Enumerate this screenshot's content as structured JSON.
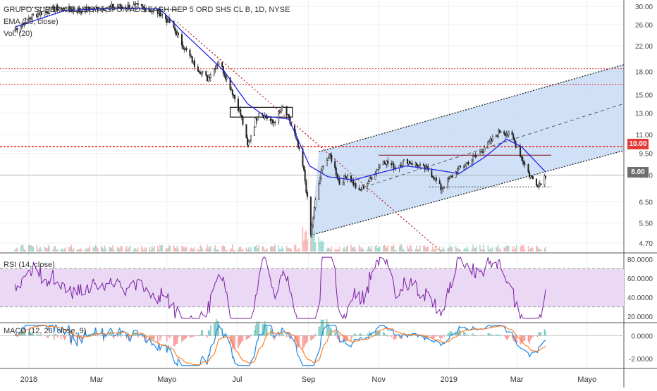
{
  "header": {
    "instrument": "GRUPO SUPERVIELLE S.A. SPON ADS EACH REP 5 ORD SHS CL B, 1D, NYSE",
    "ema_label": "EMA (20, close)",
    "vol_label": "Vol. (20)"
  },
  "rsi_panel": {
    "label": "RSI (14, close)"
  },
  "macd_panel": {
    "label": "MACD (12, 26, close, 9)"
  },
  "price_badges": {
    "resistance": "10.00",
    "last": "8.00"
  },
  "colors": {
    "up": "#26a69a",
    "down": "#ef5350",
    "ema": "#2424e6",
    "rsi": "#7b1fa2",
    "rsi_band": "#ead8f5",
    "channel": "#bcd4f4",
    "resistance": "#e53935",
    "macd": "#1e88e5",
    "signal": "#ff7f27",
    "grid": "#eceff3"
  },
  "chart_data": {
    "type": "candlestick",
    "price_axis": {
      "scale": "log",
      "ylim": [
        4.4,
        31.0
      ],
      "ticks": [
        "30.00",
        "26.00",
        "22.00",
        "18.00",
        "15.00",
        "13.00",
        "11.00",
        "9.50",
        "8.00",
        "6.50",
        "5.50",
        "4.70"
      ]
    },
    "x_axis_labels": [
      "2018",
      "Mar",
      "Mayo",
      "Jul",
      "Sep",
      "Nov",
      "2019",
      "Mar",
      "Mayo"
    ],
    "price_path_points": [
      [
        "2017-12-20",
        25.0
      ],
      [
        "2018-01-05",
        28.0
      ],
      [
        "2018-01-25",
        29.5
      ],
      [
        "2018-02-15",
        29.0
      ],
      [
        "2018-03-10",
        29.8
      ],
      [
        "2018-04-05",
        30.0
      ],
      [
        "2018-04-25",
        28.5
      ],
      [
        "2018-05-05",
        26.0
      ],
      [
        "2018-05-15",
        22.0
      ],
      [
        "2018-05-25",
        19.0
      ],
      [
        "2018-06-05",
        17.0
      ],
      [
        "2018-06-15",
        19.5
      ],
      [
        "2018-06-25",
        16.0
      ],
      [
        "2018-07-05",
        12.5
      ],
      [
        "2018-07-10",
        10.0
      ],
      [
        "2018-07-20",
        13.2
      ],
      [
        "2018-08-01",
        12.0
      ],
      [
        "2018-08-10",
        13.6
      ],
      [
        "2018-08-20",
        11.0
      ],
      [
        "2018-08-28",
        8.2
      ],
      [
        "2018-09-03",
        5.0
      ],
      [
        "2018-09-07",
        6.5
      ],
      [
        "2018-09-14",
        8.8
      ],
      [
        "2018-09-20",
        9.3
      ],
      [
        "2018-09-28",
        7.5
      ],
      [
        "2018-10-05",
        8.0
      ],
      [
        "2018-10-15",
        7.0
      ],
      [
        "2018-10-25",
        7.8
      ],
      [
        "2018-11-05",
        9.0
      ],
      [
        "2018-11-15",
        8.5
      ],
      [
        "2018-11-25",
        9.0
      ],
      [
        "2018-12-05",
        8.6
      ],
      [
        "2018-12-15",
        8.3
      ],
      [
        "2018-12-25",
        7.2
      ],
      [
        "2019-01-10",
        8.4
      ],
      [
        "2019-01-25",
        9.3
      ],
      [
        "2019-02-05",
        10.3
      ],
      [
        "2019-02-15",
        11.4
      ],
      [
        "2019-02-25",
        10.8
      ],
      [
        "2019-03-05",
        9.2
      ],
      [
        "2019-03-12",
        8.0
      ],
      [
        "2019-03-20",
        7.4
      ],
      [
        "2019-03-26",
        8.0
      ]
    ],
    "ema_path_points": [
      [
        "2017-12-20",
        25.5
      ],
      [
        "2018-02-01",
        29.0
      ],
      [
        "2018-03-20",
        29.6
      ],
      [
        "2018-04-25",
        29.4
      ],
      [
        "2018-05-15",
        24.5
      ],
      [
        "2018-06-05",
        20.5
      ],
      [
        "2018-06-20",
        18.0
      ],
      [
        "2018-07-10",
        14.0
      ],
      [
        "2018-07-25",
        12.7
      ],
      [
        "2018-08-15",
        12.4
      ],
      [
        "2018-09-02",
        8.6
      ],
      [
        "2018-09-18",
        7.9
      ],
      [
        "2018-10-10",
        7.7
      ],
      [
        "2018-11-05",
        8.2
      ],
      [
        "2018-11-25",
        8.6
      ],
      [
        "2018-12-15",
        8.4
      ],
      [
        "2019-01-10",
        8.1
      ],
      [
        "2019-02-01",
        9.2
      ],
      [
        "2019-02-20",
        10.6
      ],
      [
        "2019-03-05",
        10.0
      ],
      [
        "2019-03-26",
        8.2
      ]
    ],
    "horizontal_levels": [
      18.4,
      16.3,
      10.0,
      8.0
    ],
    "rsi": {
      "ylim": [
        15,
        85
      ],
      "upper_band": 70,
      "lower_band": 30,
      "ticks": [
        "80.0000",
        "60.0000",
        "40.0000",
        "20.0000"
      ]
    },
    "macd": {
      "ylim": [
        -2.8,
        1.0
      ],
      "ticks": [
        "0.0000",
        "-2.0000"
      ]
    }
  }
}
